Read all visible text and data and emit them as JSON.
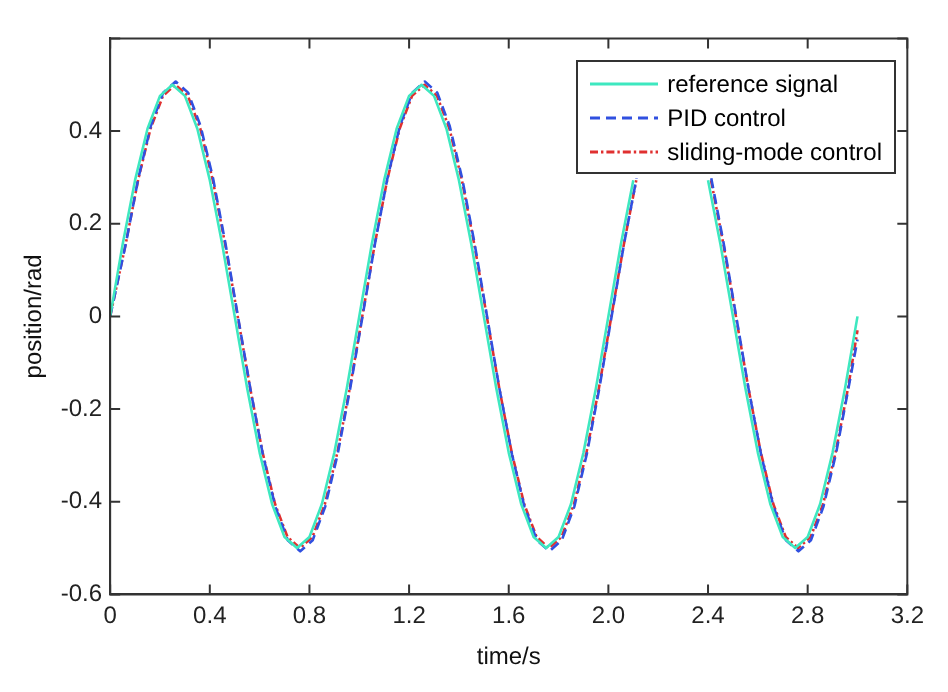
{
  "chart_data": {
    "type": "line",
    "xlabel": "time/s",
    "ylabel": "position/rad",
    "xlim": [
      0,
      3.2
    ],
    "ylim": [
      -0.6,
      0.6
    ],
    "xticks": [
      0,
      0.4,
      0.8,
      1.2,
      1.6,
      {
        "value": 2,
        "label": "2.0"
      },
      2.4,
      2.8,
      3.2
    ],
    "yticks": [
      -0.6,
      -0.4,
      -0.2,
      0,
      0.2,
      0.4,
      {
        "value": 0.6,
        "label": null
      }
    ],
    "grid": false,
    "legend": "top right",
    "marker": "none",
    "series": [
      {
        "name": "reference signal",
        "color": "#3ee8c0",
        "line_style": "solid",
        "x": [
          0,
          0.05,
          0.1,
          0.15,
          0.2,
          0.25,
          0.3,
          0.35,
          0.4,
          0.45,
          0.5,
          0.55,
          0.6,
          0.65,
          0.7,
          0.75,
          0.8,
          0.85,
          0.9,
          0.95,
          1,
          1.05,
          1.1,
          1.15,
          1.2,
          1.25,
          1.3,
          1.35,
          1.4,
          1.45,
          1.5,
          1.55,
          1.6,
          1.65,
          1.7,
          1.75,
          1.8,
          1.85,
          1.9,
          1.95,
          2,
          2.05,
          2.1,
          2.15,
          2.2,
          2.25,
          2.3,
          2.35,
          2.4,
          2.45,
          2.5,
          2.55,
          2.6,
          2.65,
          2.7,
          2.75,
          2.8,
          2.85,
          2.9,
          2.95,
          3
        ],
        "values": [
          0,
          0.155,
          0.294,
          0.405,
          0.476,
          0.5,
          0.476,
          0.405,
          0.294,
          0.155,
          0,
          -0.155,
          -0.294,
          -0.405,
          -0.476,
          -0.5,
          -0.476,
          -0.405,
          -0.294,
          -0.155,
          0,
          0.155,
          0.294,
          0.405,
          0.476,
          0.5,
          0.476,
          0.405,
          0.294,
          0.155,
          0,
          -0.155,
          -0.294,
          -0.405,
          -0.476,
          -0.5,
          -0.476,
          -0.405,
          -0.294,
          -0.155,
          0,
          0.155,
          0.294,
          null,
          null,
          null,
          null,
          null,
          0.294,
          0.155,
          0,
          -0.155,
          -0.294,
          -0.405,
          -0.476,
          -0.5,
          -0.476,
          -0.405,
          -0.294,
          -0.155,
          0
        ]
      },
      {
        "name": "PID control",
        "color": "#3050e0",
        "line_style": "dashed",
        "x": [
          0,
          0.063,
          0.113,
          0.163,
          0.213,
          0.263,
          0.313,
          0.363,
          0.413,
          0.463,
          0.513,
          0.563,
          0.613,
          0.663,
          0.713,
          0.763,
          0.813,
          0.863,
          0.913,
          0.963,
          1.013,
          1.063,
          1.113,
          1.163,
          1.213,
          1.263,
          1.313,
          1.363,
          1.413,
          1.463,
          1.513,
          1.563,
          1.613,
          1.663,
          1.713,
          1.763,
          1.813,
          1.863,
          1.913,
          1.963,
          2.013,
          2.063,
          2.113,
          2.163,
          2.213,
          2.263,
          2.313,
          2.363,
          2.413,
          2.463,
          2.513,
          2.563,
          2.613,
          2.663,
          2.713,
          2.763,
          2.813,
          2.863,
          2.913,
          2.963,
          3
        ],
        "values": [
          0,
          0.157,
          0.298,
          0.411,
          0.483,
          0.507,
          0.483,
          0.411,
          0.298,
          0.157,
          0,
          -0.157,
          -0.298,
          -0.411,
          -0.483,
          -0.507,
          -0.483,
          -0.411,
          -0.298,
          -0.157,
          0,
          0.157,
          0.298,
          0.411,
          0.483,
          0.507,
          0.483,
          0.411,
          0.298,
          0.157,
          0,
          -0.157,
          -0.298,
          -0.411,
          -0.483,
          -0.507,
          -0.483,
          -0.411,
          -0.298,
          -0.157,
          0,
          0.157,
          0.298,
          null,
          null,
          null,
          null,
          null,
          0.298,
          0.157,
          0,
          -0.157,
          -0.298,
          -0.411,
          -0.483,
          -0.507,
          -0.483,
          -0.411,
          -0.298,
          -0.157,
          -0.05
        ]
      },
      {
        "name": "sliding-mode control",
        "color": "#e03030",
        "line_style": "dashdot",
        "x": [
          0,
          0.062,
          0.112,
          0.162,
          0.212,
          0.262,
          0.312,
          0.362,
          0.412,
          0.462,
          0.512,
          0.562,
          0.612,
          0.662,
          0.712,
          0.762,
          0.812,
          0.862,
          0.912,
          0.962,
          1.012,
          1.062,
          1.112,
          1.162,
          1.212,
          1.262,
          1.312,
          1.362,
          1.412,
          1.462,
          1.512,
          1.562,
          1.612,
          1.662,
          1.712,
          1.762,
          1.812,
          1.862,
          1.912,
          1.962,
          2.012,
          2.062,
          2.112,
          2.162,
          2.212,
          2.262,
          2.312,
          2.362,
          2.412,
          2.462,
          2.512,
          2.562,
          2.612,
          2.662,
          2.712,
          2.762,
          2.812,
          2.862,
          2.912,
          2.962,
          3
        ],
        "values": [
          0,
          0.155,
          0.294,
          0.405,
          0.476,
          0.5,
          0.476,
          0.405,
          0.294,
          0.155,
          0,
          -0.155,
          -0.294,
          -0.405,
          -0.476,
          -0.5,
          -0.476,
          -0.405,
          -0.294,
          -0.155,
          0,
          0.155,
          0.294,
          0.405,
          0.476,
          0.5,
          0.476,
          0.405,
          0.294,
          0.155,
          0,
          -0.155,
          -0.294,
          -0.405,
          -0.476,
          -0.5,
          -0.476,
          -0.405,
          -0.294,
          -0.155,
          0,
          0.155,
          0.294,
          null,
          null,
          null,
          null,
          null,
          0.294,
          0.155,
          0,
          -0.155,
          -0.294,
          -0.405,
          -0.476,
          -0.5,
          -0.476,
          -0.405,
          -0.294,
          -0.155,
          -0.03
        ]
      }
    ]
  }
}
